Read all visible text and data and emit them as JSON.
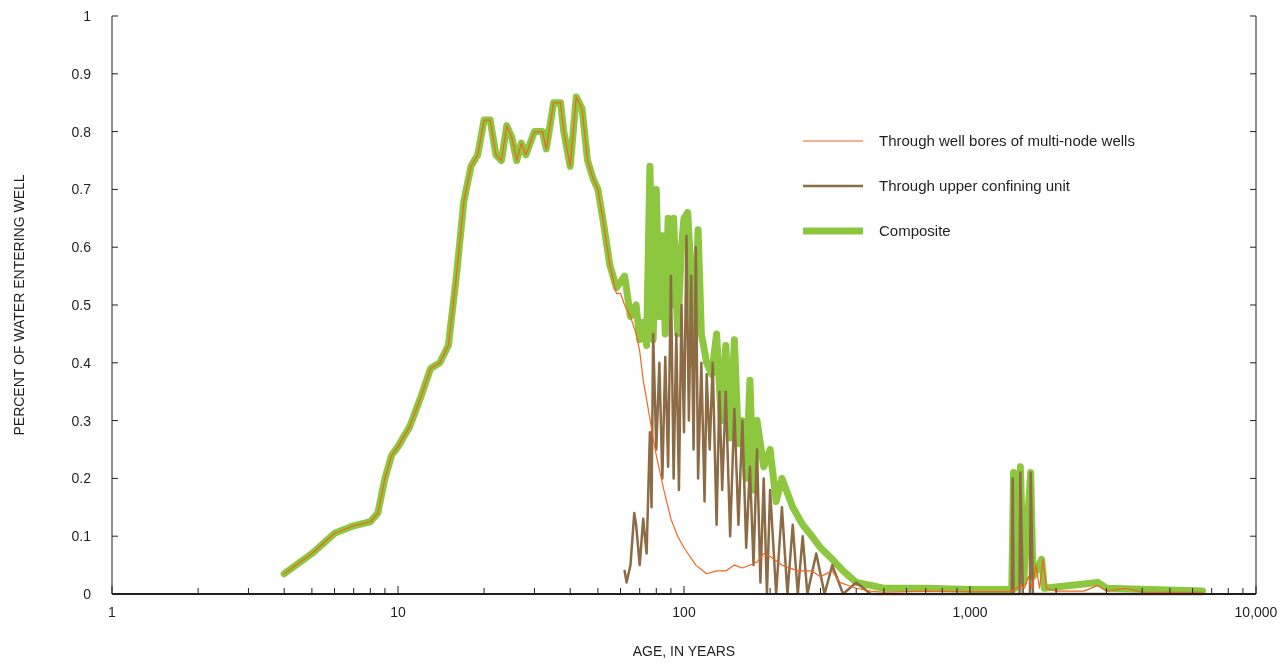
{
  "chart_data": {
    "type": "line",
    "xlabel": "AGE, IN YEARS",
    "ylabel": "PERCENT OF WATER ENTERING WELL",
    "log": "x",
    "xlim": [
      1,
      10000
    ],
    "ylim": [
      0,
      1
    ],
    "xticks": [
      1,
      {
        "value": 2,
        "label": null
      },
      {
        "value": 3,
        "label": null
      },
      {
        "value": 4,
        "label": null
      },
      {
        "value": 5,
        "label": null
      },
      {
        "value": 6,
        "label": null
      },
      {
        "value": 7,
        "label": null
      },
      {
        "value": 8,
        "label": null
      },
      {
        "value": 9,
        "label": null
      },
      10,
      {
        "value": 20,
        "label": null
      },
      {
        "value": 30,
        "label": null
      },
      {
        "value": 40,
        "label": null
      },
      {
        "value": 50,
        "label": null
      },
      {
        "value": 60,
        "label": null
      },
      {
        "value": 70,
        "label": null
      },
      {
        "value": 80,
        "label": null
      },
      {
        "value": 90,
        "label": null
      },
      100,
      {
        "value": 200,
        "label": null
      },
      {
        "value": 300,
        "label": null
      },
      {
        "value": 400,
        "label": null
      },
      {
        "value": 500,
        "label": null
      },
      {
        "value": 600,
        "label": null
      },
      {
        "value": 700,
        "label": null
      },
      {
        "value": 800,
        "label": null
      },
      {
        "value": 900,
        "label": null
      },
      {
        "value": 1000,
        "label": "1,000"
      },
      {
        "value": 2000,
        "label": null
      },
      {
        "value": 3000,
        "label": null
      },
      {
        "value": 4000,
        "label": null
      },
      {
        "value": 5000,
        "label": null
      },
      {
        "value": 6000,
        "label": null
      },
      {
        "value": 7000,
        "label": null
      },
      {
        "value": 8000,
        "label": null
      },
      {
        "value": 9000,
        "label": null
      },
      {
        "value": 10000,
        "label": "10,000"
      }
    ],
    "yticks": [
      0,
      0.1,
      0.2,
      0.3,
      0.4,
      0.5,
      0.6,
      0.7,
      0.8,
      0.9,
      1
    ],
    "grid": false,
    "legend": "top right",
    "marker": "none",
    "line_style": "solid",
    "series": [
      {
        "name": "Composite",
        "color": "#8dc63f",
        "x": [
          4,
          5,
          6,
          7,
          8,
          8.5,
          9,
          9.5,
          10,
          11,
          12,
          13,
          14,
          15,
          16,
          17,
          18,
          19,
          20,
          21,
          22,
          23,
          24,
          25,
          26,
          27,
          28,
          30,
          32,
          33,
          35,
          37,
          38,
          40,
          42,
          44,
          46,
          48,
          50,
          52,
          55,
          58,
          60,
          62,
          65,
          68,
          70,
          72,
          74,
          76,
          78,
          80,
          82,
          84,
          86,
          88,
          90,
          92,
          95,
          98,
          100,
          103,
          106,
          108,
          112,
          115,
          120,
          125,
          130,
          135,
          140,
          145,
          150,
          155,
          160,
          165,
          170,
          175,
          180,
          190,
          200,
          210,
          220,
          240,
          260,
          280,
          300,
          330,
          360,
          400,
          500,
          700,
          1000,
          1400,
          1420,
          1440,
          1500,
          1540,
          1630,
          1660,
          1780,
          1820,
          2800,
          3000,
          6500
        ],
        "values": [
          0.035,
          0.07,
          0.105,
          0.118,
          0.125,
          0.14,
          0.2,
          0.24,
          0.255,
          0.29,
          0.34,
          0.39,
          0.4,
          0.43,
          0.55,
          0.68,
          0.74,
          0.76,
          0.82,
          0.82,
          0.76,
          0.75,
          0.81,
          0.79,
          0.75,
          0.78,
          0.76,
          0.8,
          0.8,
          0.77,
          0.85,
          0.85,
          0.8,
          0.74,
          0.86,
          0.84,
          0.75,
          0.72,
          0.7,
          0.65,
          0.57,
          0.53,
          0.54,
          0.55,
          0.48,
          0.5,
          0.44,
          0.47,
          0.43,
          0.74,
          0.44,
          0.7,
          0.48,
          0.62,
          0.45,
          0.65,
          0.5,
          0.65,
          0.45,
          0.6,
          0.65,
          0.66,
          0.55,
          0.4,
          0.63,
          0.45,
          0.4,
          0.38,
          0.45,
          0.3,
          0.43,
          0.27,
          0.44,
          0.26,
          0.3,
          0.2,
          0.37,
          0.18,
          0.3,
          0.22,
          0.25,
          0.16,
          0.2,
          0.15,
          0.12,
          0.1,
          0.08,
          0.06,
          0.04,
          0.02,
          0.01,
          0.01,
          0.008,
          0.008,
          0.21,
          0.01,
          0.22,
          0.02,
          0.21,
          0.03,
          0.06,
          0.01,
          0.02,
          0.01,
          0.005
        ]
      },
      {
        "name": "Through upper confining unit",
        "color": "#8c6b45",
        "x": [
          62,
          63,
          65,
          67,
          68,
          70,
          72,
          74,
          76,
          77,
          78,
          80,
          82,
          84,
          86,
          88,
          90,
          92,
          94,
          96,
          98,
          100,
          102,
          104,
          106,
          108,
          110,
          112,
          115,
          118,
          120,
          123,
          126,
          130,
          133,
          136,
          140,
          145,
          150,
          155,
          160,
          165,
          170,
          175,
          180,
          185,
          190,
          195,
          200,
          210,
          220,
          230,
          240,
          250,
          260,
          270,
          290,
          310,
          330,
          360,
          400,
          450,
          600,
          1400,
          1410,
          1420,
          1440,
          1490,
          1500,
          1530,
          1620,
          1630,
          1660,
          6500
        ],
        "values": [
          0.04,
          0.02,
          0.05,
          0.14,
          0.12,
          0.05,
          0.13,
          0.07,
          0.28,
          0.15,
          0.45,
          0.25,
          0.4,
          0.2,
          0.41,
          0.22,
          0.55,
          0.2,
          0.45,
          0.18,
          0.5,
          0.28,
          0.62,
          0.3,
          0.55,
          0.25,
          0.6,
          0.2,
          0.4,
          0.16,
          0.38,
          0.25,
          0.4,
          0.12,
          0.35,
          0.18,
          0.35,
          0.1,
          0.32,
          0.12,
          0.3,
          0.08,
          0.22,
          0.05,
          0.25,
          0.02,
          0.2,
          0,
          0.18,
          0,
          0.15,
          0,
          0.12,
          0,
          0.1,
          0,
          0.07,
          0,
          0.05,
          0,
          0.02,
          0,
          0,
          0,
          0.2,
          0,
          0,
          0,
          0.21,
          0,
          0,
          0.21,
          0,
          0
        ]
      },
      {
        "name": "Through well bores of multi-node wells",
        "color": "#f26522",
        "x": [
          4,
          5,
          6,
          7,
          8,
          8.5,
          9,
          9.5,
          10,
          11,
          12,
          13,
          14,
          15,
          16,
          17,
          18,
          19,
          20,
          21,
          22,
          23,
          24,
          25,
          26,
          27,
          28,
          30,
          32,
          33,
          35,
          37,
          38,
          40,
          42,
          44,
          46,
          48,
          50,
          52,
          55,
          58,
          60,
          62,
          65,
          68,
          70,
          72,
          75,
          78,
          80,
          85,
          90,
          95,
          100,
          110,
          120,
          130,
          140,
          150,
          160,
          180,
          190,
          200,
          220,
          250,
          280,
          300,
          330,
          350,
          400,
          450,
          500,
          700,
          1000,
          1400,
          1500,
          1550,
          1600,
          1650,
          1700,
          1750,
          1800,
          1850,
          2000,
          2500,
          2800,
          3000,
          3500,
          4000,
          6500
        ],
        "values": [
          0.035,
          0.07,
          0.105,
          0.118,
          0.125,
          0.14,
          0.2,
          0.24,
          0.255,
          0.29,
          0.34,
          0.39,
          0.4,
          0.43,
          0.55,
          0.68,
          0.74,
          0.76,
          0.82,
          0.82,
          0.76,
          0.75,
          0.81,
          0.79,
          0.75,
          0.78,
          0.76,
          0.8,
          0.8,
          0.77,
          0.85,
          0.85,
          0.8,
          0.74,
          0.86,
          0.84,
          0.75,
          0.72,
          0.7,
          0.65,
          0.57,
          0.52,
          0.52,
          0.5,
          0.48,
          0.45,
          0.42,
          0.37,
          0.32,
          0.27,
          0.24,
          0.18,
          0.13,
          0.1,
          0.08,
          0.05,
          0.035,
          0.04,
          0.04,
          0.05,
          0.045,
          0.055,
          0.07,
          0.065,
          0.05,
          0.04,
          0.04,
          0.03,
          0.04,
          0.02,
          0.01,
          0.005,
          0.003,
          0.005,
          0.004,
          0.004,
          0.015,
          0.01,
          0.03,
          0.01,
          0.05,
          0.01,
          0.06,
          0.01,
          0.005,
          0.005,
          0.015,
          0.005,
          0.01,
          0.003,
          0.003
        ]
      }
    ]
  }
}
